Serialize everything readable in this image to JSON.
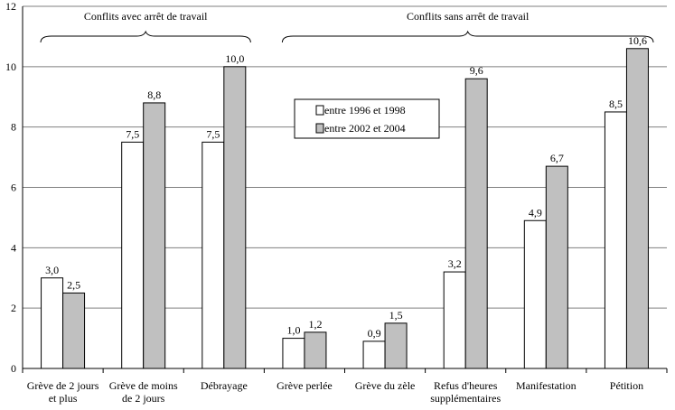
{
  "chart_data": {
    "type": "bar",
    "categories": [
      [
        "Grève de 2 jours",
        "et plus"
      ],
      [
        "Grève de moins",
        "de 2 jours"
      ],
      [
        "Débrayage"
      ],
      [
        "Grève perlée"
      ],
      [
        "Grève du zèle"
      ],
      [
        "Refus d'heures",
        "supplémentaires"
      ],
      [
        "Manifestation"
      ],
      [
        "Pétition"
      ]
    ],
    "series": [
      {
        "name": "entre 1996 et 1998",
        "values": [
          3.0,
          7.5,
          7.5,
          1.0,
          0.9,
          3.2,
          4.9,
          8.5
        ],
        "labels": [
          "3,0",
          "7,5",
          "7,5",
          "1,0",
          "0,9",
          "3,2",
          "4,9",
          "8,5"
        ],
        "color": "#ffffff"
      },
      {
        "name": "entre 2002 et 2004",
        "values": [
          2.5,
          8.8,
          10.0,
          1.2,
          1.5,
          9.6,
          6.7,
          10.6
        ],
        "labels": [
          "2,5",
          "8,8",
          "10,0",
          "1,2",
          "1,5",
          "9,6",
          "6,7",
          "10,6"
        ],
        "color": "#c0c0c0"
      }
    ],
    "ylim": [
      0,
      12
    ],
    "yticks": [
      "0",
      "2",
      "4",
      "6",
      "8",
      "10",
      "12"
    ],
    "groups": [
      {
        "label": "Conflits avec arrêt de travail",
        "from": 0,
        "to": 2
      },
      {
        "label": "Conflits sans arrêt de travail",
        "from": 3,
        "to": 7
      }
    ],
    "grid": true,
    "legend": "top-center"
  }
}
